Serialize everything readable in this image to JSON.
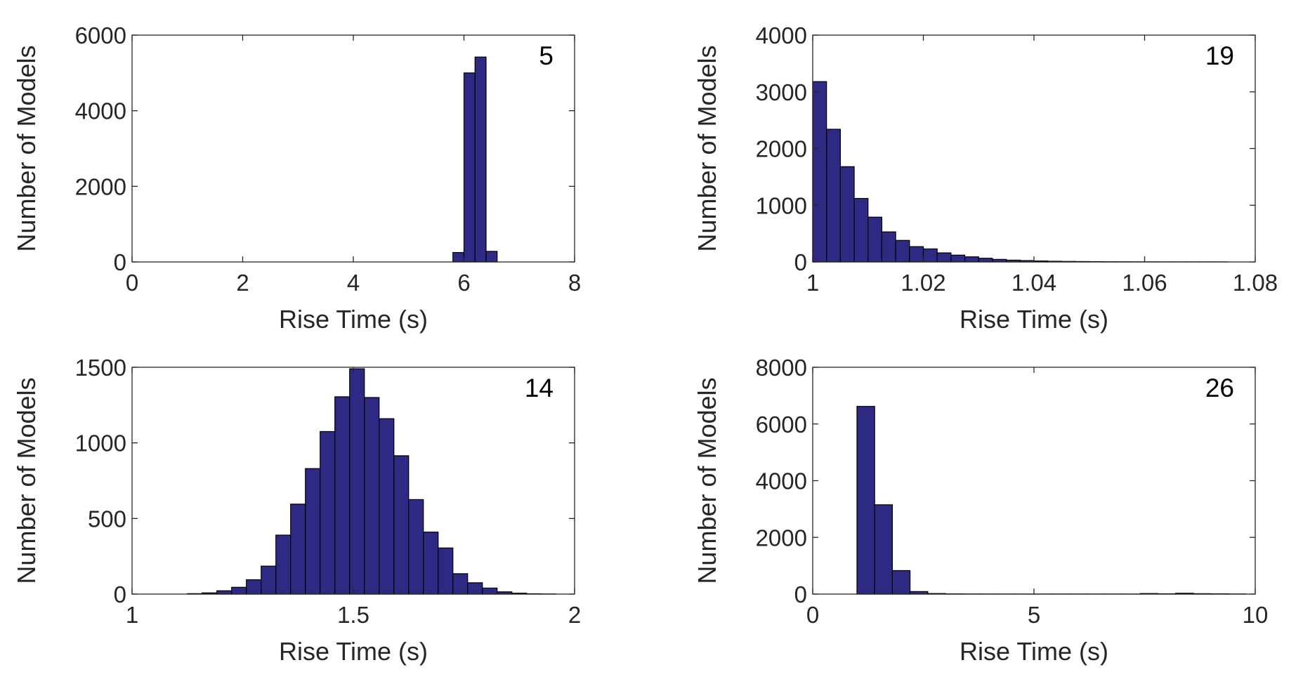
{
  "page": {
    "colors": {
      "bar_fill": "#2e2a84",
      "bar_stroke": "#000000",
      "axis": "#262626",
      "background": "#ffffff"
    }
  },
  "chart_data": [
    {
      "type": "bar",
      "panel_label": "5",
      "xlabel": "Rise Time (s)",
      "ylabel": "Number of Models",
      "xlim": [
        0,
        8
      ],
      "ylim": [
        0,
        6000
      ],
      "xticks": [
        0,
        2,
        4,
        6,
        8
      ],
      "xtick_labels": [
        "0",
        "2",
        "4",
        "6",
        "8"
      ],
      "yticks": [
        0,
        2000,
        4000,
        6000
      ],
      "ytick_labels": [
        "0",
        "2000",
        "4000",
        "6000"
      ],
      "grid": false,
      "legend": "none",
      "bin_edges": [
        5.8,
        6.0,
        6.2,
        6.4,
        6.6
      ],
      "values": [
        250,
        5000,
        5420,
        280
      ]
    },
    {
      "type": "bar",
      "panel_label": "19",
      "xlabel": "Rise Time (s)",
      "ylabel": "Number of Models",
      "xlim": [
        1.0,
        1.08
      ],
      "ylim": [
        0,
        4000
      ],
      "xticks": [
        1.0,
        1.02,
        1.04,
        1.06,
        1.08
      ],
      "xtick_labels": [
        "1",
        "1.02",
        "1.04",
        "1.06",
        "1.08"
      ],
      "yticks": [
        0,
        1000,
        2000,
        3000,
        4000
      ],
      "ytick_labels": [
        "0",
        "1000",
        "2000",
        "3000",
        "4000"
      ],
      "grid": false,
      "legend": "none",
      "bin_edges": [
        1.0,
        1.0025,
        1.005,
        1.0075,
        1.01,
        1.0125,
        1.015,
        1.0175,
        1.02,
        1.0225,
        1.025,
        1.0275,
        1.03,
        1.0325,
        1.035,
        1.0375,
        1.04,
        1.0425,
        1.045,
        1.0475,
        1.05,
        1.0525,
        1.055,
        1.0575,
        1.06,
        1.0625,
        1.065,
        1.0675,
        1.07,
        1.0725,
        1.075
      ],
      "values": [
        3180,
        2340,
        1680,
        1120,
        790,
        530,
        380,
        270,
        230,
        160,
        120,
        90,
        65,
        45,
        32,
        24,
        17,
        12,
        9,
        7,
        5,
        4,
        3,
        2,
        2,
        1,
        1,
        1,
        1,
        1
      ]
    },
    {
      "type": "bar",
      "panel_label": "14",
      "xlabel": "Rise Time (s)",
      "ylabel": "Number of Models",
      "xlim": [
        1,
        2
      ],
      "ylim": [
        0,
        1500
      ],
      "xticks": [
        1,
        1.5,
        2
      ],
      "xtick_labels": [
        "1",
        "1.5",
        "2"
      ],
      "yticks": [
        0,
        500,
        1000,
        1500
      ],
      "ytick_labels": [
        "0",
        "500",
        "1000",
        "1500"
      ],
      "grid": false,
      "legend": "none",
      "bin_edges": [
        1.125,
        1.1583,
        1.1917,
        1.225,
        1.2583,
        1.2917,
        1.325,
        1.3583,
        1.3917,
        1.425,
        1.4583,
        1.4917,
        1.525,
        1.5583,
        1.5917,
        1.625,
        1.6583,
        1.6917,
        1.725,
        1.7583,
        1.7917,
        1.825,
        1.8583,
        1.8917,
        1.925,
        1.9583
      ],
      "values": [
        3,
        8,
        22,
        45,
        95,
        185,
        390,
        595,
        830,
        1075,
        1305,
        1490,
        1300,
        1160,
        915,
        625,
        410,
        305,
        135,
        75,
        40,
        15,
        6,
        2,
        1
      ]
    },
    {
      "type": "bar",
      "panel_label": "26",
      "xlabel": "Rise Time (s)",
      "ylabel": "Number of Models",
      "xlim": [
        0,
        10
      ],
      "ylim": [
        0,
        8000
      ],
      "xticks": [
        0,
        5,
        10
      ],
      "xtick_labels": [
        "0",
        "5",
        "10"
      ],
      "yticks": [
        0,
        2000,
        4000,
        6000,
        8000
      ],
      "ytick_labels": [
        "0",
        "2000",
        "4000",
        "6000",
        "8000"
      ],
      "grid": false,
      "legend": "none",
      "bin_edges": [
        1.0,
        1.4,
        1.8,
        2.2,
        2.6,
        3.0,
        3.4,
        3.8,
        4.2,
        4.6,
        5.0,
        5.4,
        5.8,
        6.2,
        6.6,
        7.0,
        7.4,
        7.8,
        8.2,
        8.6,
        9.0,
        9.4,
        9.8
      ],
      "values": [
        6620,
        3150,
        830,
        90,
        20,
        8,
        5,
        4,
        3,
        3,
        3,
        3,
        3,
        3,
        3,
        3,
        20,
        10,
        30,
        15,
        10,
        5
      ]
    }
  ]
}
